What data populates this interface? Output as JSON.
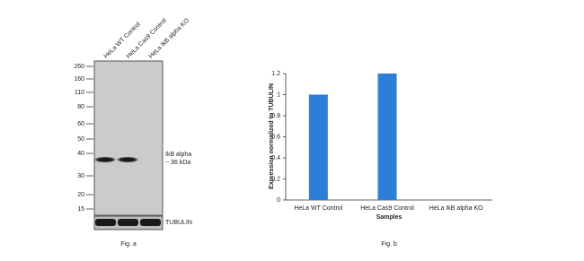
{
  "blot": {
    "lanes": [
      "HeLa WT Control",
      "HeLa Cas9 Control",
      "HeLa IkB alpha KO"
    ],
    "markers": [
      "260",
      "160",
      "110",
      "80",
      "60",
      "50",
      "40",
      "30",
      "20",
      "15"
    ],
    "band_label": [
      "IkB alpha",
      "~ 36 kDa"
    ],
    "loading_control": "TUBULIN",
    "caption": "Fig. a"
  },
  "chart_data": {
    "type": "bar",
    "categories": [
      "HeLa WT Control",
      "HeLa Cas9 Control",
      "HeLa IkB alpha KO"
    ],
    "values": [
      1,
      1.2,
      0
    ],
    "color": "#2b7fd6",
    "ylim": [
      0,
      1.2
    ],
    "yticks": [
      0,
      0.2,
      0.4,
      0.6,
      0.8,
      1,
      1.2
    ],
    "y_label": "Expression normalized to TUBULIN",
    "x_label": "Samples",
    "caption": "Fig. b"
  }
}
